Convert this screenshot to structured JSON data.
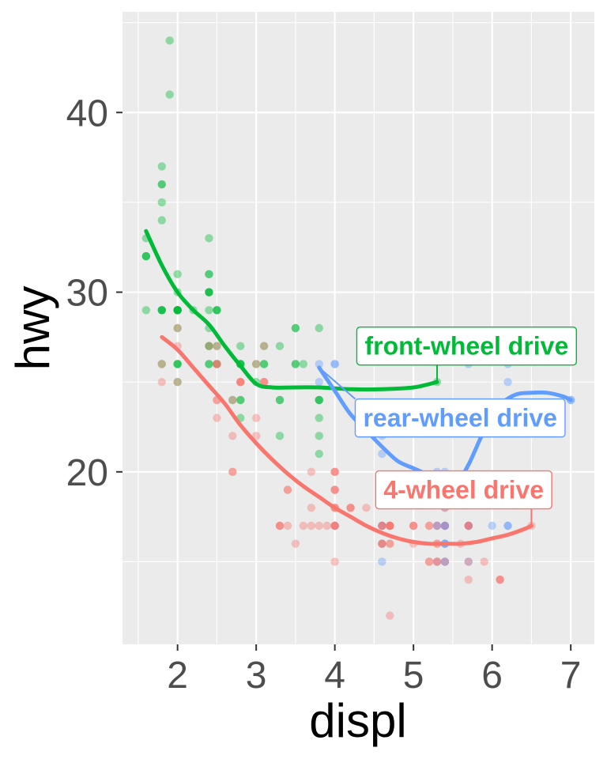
{
  "chart_data": {
    "type": "scatter",
    "xlabel": "displ",
    "ylabel": "hwy",
    "xlim": [
      1.3,
      7.3
    ],
    "ylim": [
      10.4,
      45.6
    ],
    "x_ticks": [
      "2",
      "3",
      "4",
      "5",
      "6",
      "7"
    ],
    "y_ticks": [
      "20",
      "30",
      "40"
    ],
    "grid": true,
    "legend": "none",
    "point_alpha": 0.4,
    "series": [
      {
        "key": "f",
        "color": "#00ba38",
        "points": [
          [
            1.8,
            29
          ],
          [
            1.8,
            29
          ],
          [
            2.0,
            31
          ],
          [
            2.0,
            30
          ],
          [
            2.8,
            26
          ],
          [
            2.8,
            26
          ],
          [
            3.1,
            27
          ],
          [
            1.8,
            26
          ],
          [
            2.0,
            25
          ],
          [
            2.8,
            27
          ],
          [
            3.1,
            26
          ],
          [
            2.4,
            30
          ],
          [
            2.4,
            31
          ],
          [
            3.0,
            26
          ],
          [
            3.3,
            24
          ],
          [
            3.3,
            24
          ],
          [
            3.3,
            22
          ],
          [
            3.8,
            24
          ],
          [
            3.8,
            24
          ],
          [
            3.8,
            22
          ],
          [
            3.8,
            23
          ],
          [
            3.8,
            28
          ],
          [
            1.8,
            29
          ],
          [
            1.8,
            29
          ],
          [
            2.0,
            29
          ],
          [
            2.0,
            29
          ],
          [
            2.8,
            26
          ],
          [
            2.8,
            26
          ],
          [
            3.1,
            26
          ],
          [
            2.4,
            26
          ],
          [
            2.5,
            27
          ],
          [
            2.5,
            29
          ],
          [
            2.4,
            30
          ],
          [
            2.4,
            30
          ],
          [
            2.4,
            33
          ],
          [
            3.5,
            28
          ],
          [
            1.6,
            33
          ],
          [
            1.6,
            32
          ],
          [
            1.6,
            32
          ],
          [
            1.6,
            29
          ],
          [
            1.6,
            32
          ],
          [
            1.8,
            34
          ],
          [
            1.8,
            36
          ],
          [
            1.8,
            36
          ],
          [
            2.0,
            29
          ],
          [
            2.4,
            26
          ],
          [
            2.4,
            27
          ],
          [
            2.4,
            30
          ],
          [
            2.4,
            31
          ],
          [
            2.5,
            26
          ],
          [
            2.5,
            26
          ],
          [
            3.3,
            27
          ],
          [
            1.9,
            44
          ],
          [
            2.0,
            29
          ],
          [
            2.0,
            26
          ],
          [
            2.0,
            29
          ],
          [
            2.5,
            29
          ],
          [
            2.5,
            29
          ],
          [
            1.8,
            37
          ],
          [
            1.8,
            35
          ],
          [
            2.0,
            29
          ],
          [
            2.0,
            26
          ],
          [
            2.8,
            24
          ],
          [
            1.9,
            41
          ],
          [
            2.0,
            29
          ],
          [
            2.8,
            24
          ],
          [
            2.0,
            26
          ],
          [
            2.4,
            29
          ],
          [
            3.0,
            25
          ],
          [
            3.5,
            26
          ],
          [
            3.5,
            26
          ],
          [
            3.6,
            26
          ],
          [
            3.8,
            21
          ],
          [
            2.2,
            29
          ],
          [
            2.7,
            24
          ],
          [
            2.8,
            23
          ],
          [
            2.0,
            28
          ],
          [
            2.4,
            28
          ],
          [
            3.5,
            28
          ],
          [
            3.8,
            24
          ],
          [
            5.3,
            25
          ],
          [
            2.4,
            27
          ]
        ],
        "smooth": [
          [
            1.6,
            33.4
          ],
          [
            1.8,
            31.5
          ],
          [
            2.0,
            30.0
          ],
          [
            2.2,
            29.0
          ],
          [
            2.4,
            28.2
          ],
          [
            2.6,
            27.0
          ],
          [
            2.8,
            25.9
          ],
          [
            3.0,
            24.9
          ],
          [
            3.2,
            24.7
          ],
          [
            3.5,
            24.7
          ],
          [
            3.8,
            24.7
          ],
          [
            4.2,
            24.6
          ],
          [
            4.6,
            24.6
          ],
          [
            5.0,
            24.7
          ],
          [
            5.3,
            25.0
          ]
        ],
        "label": "front-wheel drive",
        "label_pos": [
          4.38,
          27.0
        ],
        "label_anchor": [
          5.3,
          25.0
        ]
      },
      {
        "key": "r",
        "color": "#619cff",
        "points": [
          [
            3.8,
            26
          ],
          [
            3.8,
            25
          ],
          [
            4.0,
            26
          ],
          [
            4.6,
            23
          ],
          [
            4.6,
            22
          ],
          [
            4.6,
            21
          ],
          [
            5.4,
            20
          ],
          [
            5.4,
            19
          ],
          [
            5.7,
            26
          ],
          [
            6.2,
            26
          ],
          [
            6.2,
            25
          ],
          [
            7.0,
            24
          ],
          [
            5.3,
            20
          ],
          [
            5.3,
            19
          ],
          [
            5.7,
            17
          ],
          [
            6.0,
            17
          ],
          [
            5.7,
            17
          ],
          [
            5.7,
            17
          ],
          [
            6.2,
            17
          ],
          [
            6.2,
            17
          ],
          [
            7.0,
            24
          ],
          [
            5.4,
            16
          ],
          [
            5.4,
            17
          ],
          [
            5.3,
            17
          ],
          [
            5.3,
            17
          ],
          [
            4.6,
            17
          ],
          [
            5.4,
            16
          ],
          [
            5.4,
            15
          ],
          [
            5.4,
            17
          ],
          [
            4.6,
            15
          ],
          [
            5.4,
            18
          ],
          [
            5.4,
            17
          ],
          [
            5.3,
            15
          ],
          [
            5.4,
            17
          ],
          [
            4.0,
            26
          ],
          [
            4.6,
            17
          ],
          [
            5.4,
            15
          ],
          [
            5.7,
            15
          ],
          [
            4.6,
            16
          ],
          [
            5.4,
            16
          ],
          [
            4.0,
            17
          ]
        ],
        "smooth": [
          [
            3.8,
            25.8
          ],
          [
            4.0,
            24.5
          ],
          [
            4.2,
            23.2
          ],
          [
            4.4,
            22.3
          ],
          [
            4.6,
            21.4
          ],
          [
            4.8,
            20.6
          ],
          [
            5.0,
            20.2
          ],
          [
            5.2,
            19.8
          ],
          [
            5.4,
            19.3
          ],
          [
            5.55,
            19.4
          ],
          [
            5.7,
            20.4
          ],
          [
            5.9,
            22.3
          ],
          [
            6.1,
            23.7
          ],
          [
            6.3,
            24.3
          ],
          [
            6.5,
            24.4
          ],
          [
            6.7,
            24.4
          ],
          [
            6.9,
            24.2
          ],
          [
            7.0,
            24.0
          ]
        ],
        "label": "rear-wheel drive",
        "label_pos": [
          4.36,
          23.0
        ],
        "label_anchor": [
          3.8,
          25.8
        ]
      },
      {
        "key": "4",
        "color": "#f8766d",
        "points": [
          [
            1.8,
            26
          ],
          [
            1.8,
            25
          ],
          [
            2.0,
            28
          ],
          [
            2.0,
            27
          ],
          [
            2.8,
            25
          ],
          [
            2.8,
            25
          ],
          [
            3.1,
            25
          ],
          [
            3.1,
            25
          ],
          [
            2.8,
            25
          ],
          [
            3.1,
            27
          ],
          [
            4.2,
            18
          ],
          [
            5.3,
            16
          ],
          [
            5.3,
            17
          ],
          [
            5.3,
            16
          ],
          [
            5.7,
            17
          ],
          [
            6.5,
            17
          ],
          [
            4.7,
            17
          ],
          [
            4.7,
            17
          ],
          [
            4.7,
            16
          ],
          [
            5.2,
            15
          ],
          [
            5.7,
            17
          ],
          [
            5.9,
            15
          ],
          [
            4.7,
            19
          ],
          [
            4.7,
            17
          ],
          [
            4.7,
            12
          ],
          [
            5.2,
            17
          ],
          [
            5.2,
            15
          ],
          [
            3.9,
            17
          ],
          [
            4.7,
            17
          ],
          [
            4.7,
            17
          ],
          [
            5.2,
            17
          ],
          [
            5.7,
            15
          ],
          [
            4.0,
            20
          ],
          [
            4.0,
            20
          ],
          [
            4.0,
            19
          ],
          [
            4.0,
            20
          ],
          [
            4.6,
            16
          ],
          [
            5.0,
            16
          ],
          [
            4.2,
            18
          ],
          [
            4.2,
            18
          ],
          [
            4.6,
            16
          ],
          [
            4.6,
            17
          ],
          [
            5.4,
            15
          ],
          [
            5.4,
            18
          ],
          [
            5.4,
            17
          ],
          [
            4.0,
            19
          ],
          [
            4.0,
            19
          ],
          [
            4.0,
            17
          ],
          [
            4.0,
            17
          ],
          [
            4.0,
            15
          ],
          [
            4.6,
            16
          ],
          [
            4.6,
            17
          ],
          [
            5.0,
            17
          ],
          [
            2.7,
            20
          ],
          [
            2.7,
            22
          ],
          [
            2.7,
            20
          ],
          [
            3.4,
            17
          ],
          [
            3.4,
            19
          ],
          [
            4.0,
            17
          ],
          [
            4.7,
            16
          ],
          [
            2.4,
            27
          ],
          [
            3.0,
            22
          ],
          [
            3.3,
            17
          ],
          [
            3.3,
            17
          ],
          [
            4.0,
            18
          ],
          [
            5.6,
            16
          ],
          [
            3.5,
            16
          ],
          [
            3.7,
            18
          ],
          [
            2.5,
            24
          ],
          [
            2.5,
            23
          ],
          [
            2.5,
            26
          ],
          [
            2.5,
            27
          ],
          [
            2.5,
            26
          ],
          [
            3.0,
            26
          ],
          [
            3.0,
            23
          ],
          [
            2.7,
            24
          ],
          [
            3.4,
            19
          ],
          [
            3.7,
            20
          ],
          [
            4.7,
            19
          ],
          [
            5.3,
            15
          ],
          [
            5.7,
            14
          ],
          [
            6.1,
            14
          ],
          [
            4.0,
            18
          ],
          [
            4.0,
            18
          ],
          [
            4.6,
            17
          ],
          [
            5.0,
            17
          ],
          [
            2.0,
            25
          ],
          [
            2.5,
            24
          ],
          [
            4.0,
            17
          ],
          [
            5.0,
            17
          ],
          [
            3.1,
            25
          ],
          [
            3.8,
            17
          ],
          [
            4.4,
            18
          ],
          [
            2.8,
            25
          ],
          [
            3.6,
            17
          ],
          [
            6.1,
            14
          ],
          [
            5.3,
            15
          ],
          [
            2.5,
            26
          ],
          [
            3.3,
            17
          ],
          [
            3.7,
            17
          ],
          [
            4.7,
            17
          ],
          [
            5.7,
            17
          ],
          [
            6.1,
            14
          ]
        ],
        "smooth": [
          [
            1.8,
            27.5
          ],
          [
            2.0,
            26.8
          ],
          [
            2.2,
            25.8
          ],
          [
            2.4,
            24.8
          ],
          [
            2.6,
            23.8
          ],
          [
            2.8,
            22.6
          ],
          [
            3.0,
            21.6
          ],
          [
            3.2,
            20.7
          ],
          [
            3.4,
            19.9
          ],
          [
            3.6,
            19.2
          ],
          [
            3.8,
            18.6
          ],
          [
            4.0,
            18.0
          ],
          [
            4.2,
            17.5
          ],
          [
            4.4,
            17.0
          ],
          [
            4.6,
            16.6
          ],
          [
            4.8,
            16.3
          ],
          [
            5.0,
            16.1
          ],
          [
            5.2,
            16.0
          ],
          [
            5.4,
            16.0
          ],
          [
            5.6,
            16.0
          ],
          [
            5.8,
            16.1
          ],
          [
            6.0,
            16.3
          ],
          [
            6.2,
            16.5
          ],
          [
            6.4,
            16.8
          ],
          [
            6.5,
            17.0
          ]
        ],
        "label": "4-wheel drive",
        "label_pos": [
          4.62,
          19.0
        ],
        "label_anchor": [
          6.5,
          17.0
        ]
      }
    ]
  }
}
